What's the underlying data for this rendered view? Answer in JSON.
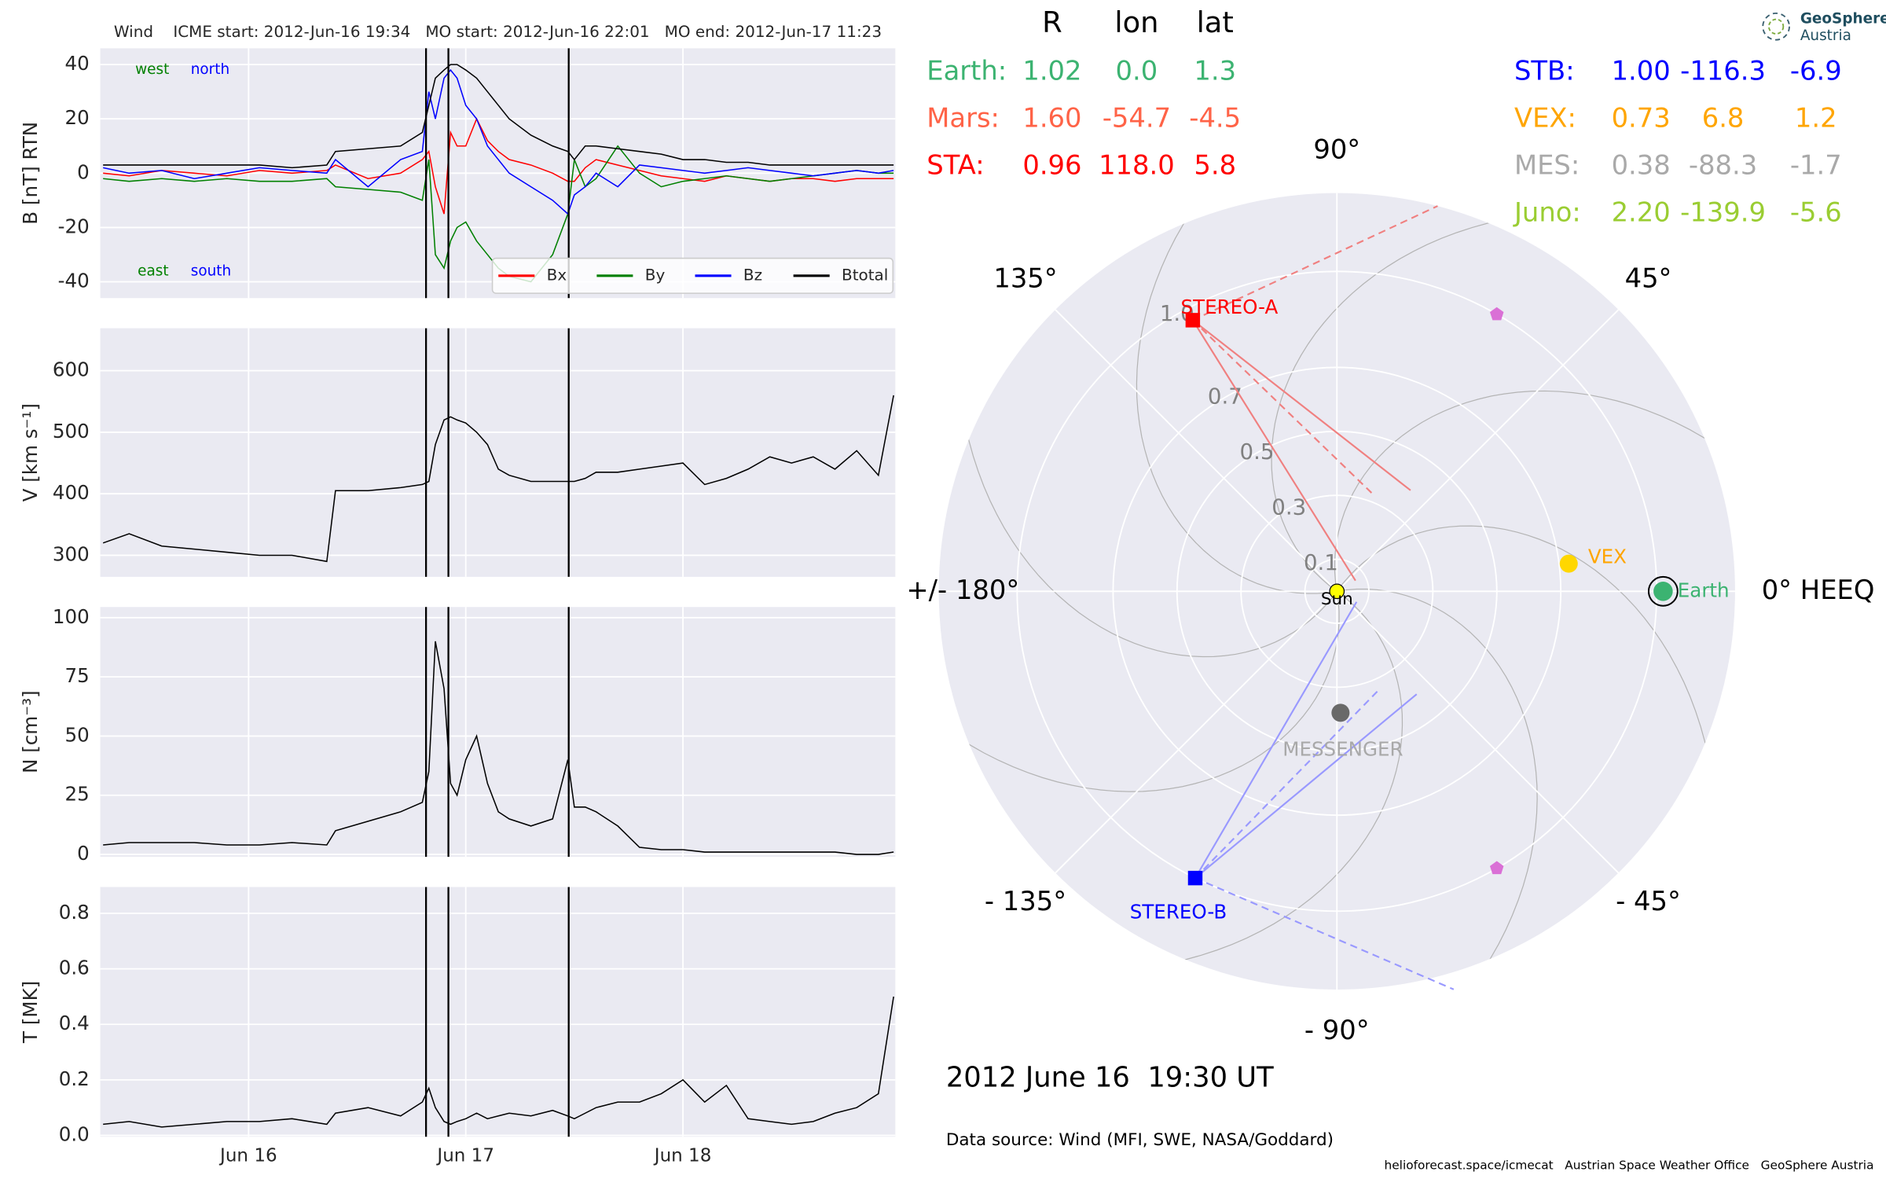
{
  "chart_data": [
    {
      "type": "line",
      "title": "Wind    ICME start: 2012-Jun-16 19:34   MO start: 2012-Jun-16 22:01   MO end: 2012-Jun-17 11:23",
      "ylabel": "B [nT] RTN",
      "x": [
        15.33,
        15.45,
        15.6,
        15.75,
        15.9,
        16.05,
        16.2,
        16.36,
        16.4,
        16.55,
        16.7,
        16.8,
        16.83,
        16.86,
        16.9,
        16.93,
        16.96,
        17.0,
        17.05,
        17.1,
        17.15,
        17.2,
        17.3,
        17.4,
        17.47,
        17.5,
        17.55,
        17.6,
        17.7,
        17.8,
        17.9,
        18.0,
        18.1,
        18.2,
        18.3,
        18.4,
        18.5,
        18.6,
        18.7,
        18.8,
        18.9,
        18.97
      ],
      "xlim": [
        15.317,
        18.978
      ],
      "xticks": [
        16,
        17,
        18
      ],
      "ylim": [
        -46,
        46
      ],
      "yticks": [
        -40,
        -20,
        0,
        20,
        40
      ],
      "grid": true,
      "vlines": [
        16.817,
        16.92,
        17.474
      ],
      "legend": "lower right",
      "annotations": [
        {
          "text": "west",
          "color": "#008000"
        },
        {
          "text": "north",
          "color": "#0000ff"
        },
        {
          "text": "east",
          "color": "#008000"
        },
        {
          "text": "south",
          "color": "#0000ff"
        }
      ],
      "series": [
        {
          "name": "Bx",
          "color": "#ff0000",
          "values": [
            0,
            -1,
            1,
            0,
            -1,
            1,
            0,
            1,
            3,
            -2,
            0,
            5,
            8,
            -5,
            -15,
            15,
            10,
            10,
            20,
            12,
            8,
            5,
            3,
            0,
            -3,
            -3,
            2,
            5,
            3,
            1,
            -1,
            -2,
            -3,
            -1,
            -2,
            -3,
            -2,
            -2,
            -3,
            -2,
            -2,
            -2
          ]
        },
        {
          "name": "By",
          "color": "#008000",
          "values": [
            -2,
            -3,
            -2,
            -3,
            -2,
            -3,
            -3,
            -2,
            -5,
            -6,
            -7,
            -10,
            5,
            -30,
            -35,
            -25,
            -20,
            -18,
            -25,
            -30,
            -35,
            -38,
            -40,
            -30,
            -15,
            5,
            -5,
            -2,
            10,
            0,
            -5,
            -3,
            -2,
            -1,
            -2,
            -3,
            -2,
            -1,
            0,
            1,
            0,
            0
          ]
        },
        {
          "name": "Bz",
          "color": "#0000ff",
          "values": [
            2,
            0,
            1,
            -2,
            0,
            2,
            1,
            0,
            5,
            -5,
            5,
            8,
            30,
            20,
            35,
            38,
            35,
            25,
            20,
            10,
            5,
            0,
            -5,
            -10,
            -15,
            -8,
            -5,
            0,
            -5,
            3,
            2,
            1,
            0,
            1,
            2,
            1,
            0,
            -1,
            0,
            1,
            0,
            1
          ]
        },
        {
          "name": "Btotal",
          "color": "#000000",
          "values": [
            3,
            3,
            3,
            3,
            3,
            3,
            2,
            3,
            8,
            9,
            10,
            15,
            25,
            35,
            38,
            40,
            40,
            38,
            35,
            30,
            25,
            20,
            14,
            10,
            8,
            5,
            10,
            10,
            9,
            8,
            7,
            5,
            5,
            4,
            4,
            3,
            3,
            3,
            3,
            3,
            3,
            3
          ]
        }
      ]
    },
    {
      "type": "line",
      "ylabel": "V [km s⁻¹]",
      "x": [
        15.33,
        15.45,
        15.6,
        15.75,
        15.9,
        16.05,
        16.2,
        16.36,
        16.4,
        16.55,
        16.7,
        16.8,
        16.83,
        16.86,
        16.9,
        16.93,
        16.96,
        17.0,
        17.05,
        17.1,
        17.15,
        17.2,
        17.3,
        17.4,
        17.47,
        17.5,
        17.55,
        17.6,
        17.7,
        17.8,
        17.9,
        18.0,
        18.1,
        18.2,
        18.3,
        18.4,
        18.5,
        18.6,
        18.7,
        18.8,
        18.9,
        18.97
      ],
      "xlim": [
        15.317,
        18.978
      ],
      "xticks": [
        16,
        17,
        18
      ],
      "ylim": [
        265,
        669
      ],
      "yticks": [
        300,
        400,
        500,
        600
      ],
      "grid": true,
      "vlines": [
        16.817,
        16.92,
        17.474
      ],
      "color": "#000000",
      "values": [
        320,
        335,
        315,
        310,
        305,
        300,
        300,
        290,
        405,
        405,
        410,
        415,
        420,
        480,
        520,
        525,
        520,
        515,
        500,
        480,
        440,
        430,
        420,
        420,
        420,
        420,
        425,
        435,
        435,
        440,
        445,
        450,
        415,
        425,
        440,
        460,
        450,
        460,
        440,
        470,
        430,
        560
      ]
    },
    {
      "type": "line",
      "ylabel": "N [cm⁻³]",
      "x": [
        15.33,
        15.45,
        15.6,
        15.75,
        15.9,
        16.05,
        16.2,
        16.36,
        16.4,
        16.55,
        16.7,
        16.8,
        16.83,
        16.86,
        16.9,
        16.93,
        16.96,
        17.0,
        17.05,
        17.1,
        17.15,
        17.2,
        17.3,
        17.4,
        17.47,
        17.5,
        17.55,
        17.6,
        17.7,
        17.8,
        17.9,
        18.0,
        18.1,
        18.2,
        18.3,
        18.4,
        18.5,
        18.6,
        18.7,
        18.8,
        18.9,
        18.97
      ],
      "xlim": [
        15.317,
        18.978
      ],
      "xticks": [
        16,
        17,
        18
      ],
      "ylim": [
        -1,
        104.5
      ],
      "yticks": [
        0,
        25,
        50,
        75,
        100
      ],
      "grid": true,
      "vlines": [
        16.817,
        16.92,
        17.474
      ],
      "color": "#000000",
      "values": [
        4,
        5,
        5,
        5,
        4,
        4,
        5,
        4,
        10,
        14,
        18,
        22,
        35,
        90,
        70,
        30,
        25,
        40,
        50,
        30,
        18,
        15,
        12,
        15,
        40,
        20,
        20,
        18,
        12,
        3,
        2,
        2,
        1,
        1,
        1,
        1,
        1,
        1,
        1,
        0,
        0,
        1
      ]
    },
    {
      "type": "line",
      "ylabel": "T [MK]",
      "x": [
        15.33,
        15.45,
        15.6,
        15.75,
        15.9,
        16.05,
        16.2,
        16.36,
        16.4,
        16.55,
        16.7,
        16.8,
        16.83,
        16.86,
        16.9,
        16.93,
        16.96,
        17.0,
        17.05,
        17.1,
        17.15,
        17.2,
        17.3,
        17.4,
        17.47,
        17.5,
        17.55,
        17.6,
        17.7,
        17.8,
        17.9,
        18.0,
        18.1,
        18.2,
        18.3,
        18.4,
        18.5,
        18.6,
        18.7,
        18.8,
        18.9,
        18.97
      ],
      "xlim": [
        15.317,
        18.978
      ],
      "xticks": [
        {
          "value": 16,
          "label": "Jun 16"
        },
        {
          "value": 17,
          "label": "Jun 17"
        },
        {
          "value": 18,
          "label": "Jun 18"
        }
      ],
      "ylim": [
        -0.005,
        0.895
      ],
      "yticks": [
        {
          "value": 0,
          "label": "0.0"
        },
        0.2,
        0.4,
        0.6,
        0.8
      ],
      "grid": true,
      "vlines": [
        16.817,
        16.92,
        17.474
      ],
      "color": "#000000",
      "values": [
        0.04,
        0.05,
        0.03,
        0.04,
        0.05,
        0.05,
        0.06,
        0.04,
        0.08,
        0.1,
        0.07,
        0.12,
        0.17,
        0.1,
        0.05,
        0.04,
        0.05,
        0.06,
        0.08,
        0.06,
        0.07,
        0.08,
        0.07,
        0.09,
        0.07,
        0.06,
        0.08,
        0.1,
        0.12,
        0.12,
        0.15,
        0.2,
        0.12,
        0.18,
        0.06,
        0.05,
        0.04,
        0.05,
        0.08,
        0.1,
        0.15,
        0.5
      ]
    },
    {
      "type": "polar",
      "rlim": [
        0,
        1.245
      ],
      "rticks": [
        0.1,
        0.3,
        0.5,
        0.7,
        {
          "value": 1,
          "label": "1.0"
        }
      ],
      "angle_ticks": [
        {
          "value": 0,
          "label": "0° HEEQ"
        },
        {
          "value": 45,
          "label": "45°"
        },
        {
          "value": 90,
          "label": "90°"
        },
        {
          "value": 135,
          "label": "135°"
        },
        {
          "value": 180,
          "label": "+/- 180°"
        },
        {
          "value": -135,
          "label": "- 135°"
        },
        {
          "value": -90,
          "label": "- 90°"
        },
        {
          "value": -45,
          "label": "- 45°"
        }
      ],
      "bodies": [
        {
          "name": "Sun",
          "r": 0,
          "lon": 0,
          "color": "#ffff00",
          "label_color": "#000000"
        },
        {
          "name": "Earth",
          "r": 1.02,
          "lon": 0.0,
          "color": "#3cb371",
          "label_color": "#3cb371"
        },
        {
          "name": "VEX",
          "r": 0.73,
          "lon": 6.8,
          "color": "#ffd700",
          "label_color": "#ffa500"
        },
        {
          "name": "MESSENGER",
          "r": 0.38,
          "lon": -88.3,
          "color": "#696969",
          "label_color": "#a9a9a9"
        },
        {
          "name": "STEREO-A",
          "r": 0.96,
          "lon": 118.0,
          "color": "#ff0000",
          "label_color": "#ff0000",
          "marker": "square"
        },
        {
          "name": "STEREO-B",
          "r": 1.0,
          "lon": -116.3,
          "color": "#0000ff",
          "label_color": "#0000ff",
          "marker": "square"
        }
      ],
      "points": {
        "color": "#da70d6",
        "r": [
          1.0,
          1.0
        ],
        "lon": [
          60,
          -60
        ]
      },
      "positions_table": {
        "columns": [
          "R",
          "lon",
          "lat"
        ],
        "rows": [
          {
            "name": "Earth:",
            "color": "#3cb371",
            "values": [
              "1.02",
              "0.0",
              "1.3"
            ]
          },
          {
            "name": "Mars:",
            "color": "#ff6347",
            "values": [
              "1.60",
              "-54.7",
              "-4.5"
            ]
          },
          {
            "name": "STA:",
            "color": "#ff0000",
            "values": [
              "0.96",
              "118.0",
              "5.8"
            ]
          },
          {
            "name": "STB:",
            "color": "#0000ff",
            "values": [
              "1.00",
              "-116.3",
              "-6.9"
            ]
          },
          {
            "name": "VEX:",
            "color": "#ffa500",
            "values": [
              "0.73",
              "6.8",
              "1.2"
            ]
          },
          {
            "name": "MES:",
            "color": "#a9a9a9",
            "values": [
              "0.38",
              "-88.3",
              "-1.7"
            ]
          },
          {
            "name": "Juno:",
            "color": "#9acd32",
            "values": [
              "2.20",
              "-139.9",
              "-5.6"
            ]
          }
        ]
      }
    }
  ],
  "date_label": "2012 June 16  19:30 UT",
  "data_source": "Data source: Wind (MFI, SWE, NASA/Goddard)",
  "footer": "helioforecast.space/icmecat   Austrian Space Weather Office   GeoSphere Austria",
  "logo": [
    "GeoSphere",
    "Austria"
  ]
}
